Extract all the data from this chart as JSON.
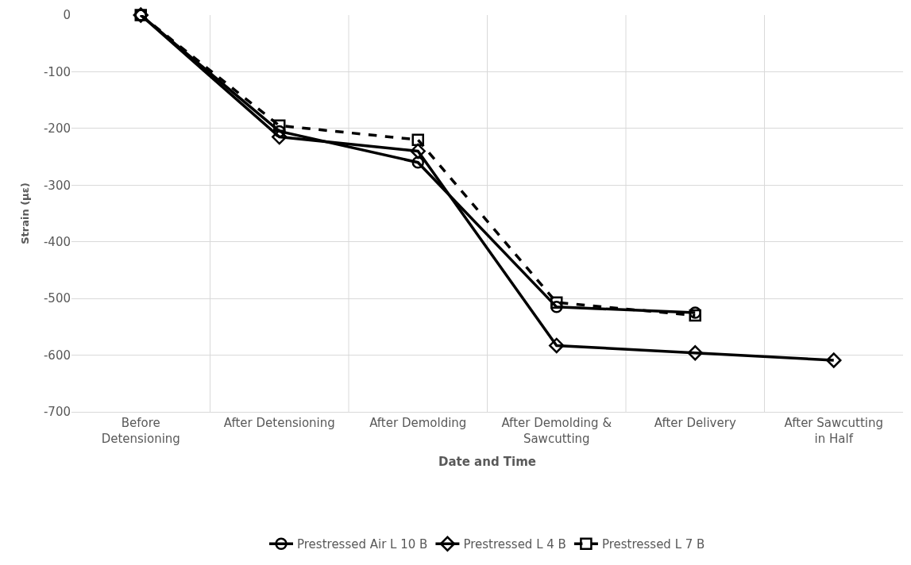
{
  "chart_data": {
    "type": "line",
    "xlabel": "Date and Time",
    "ylabel": "Strain (µε)",
    "categories": [
      "Before Detensioning",
      "After Detensioning",
      "After Demolding",
      "After Demolding & Sawcutting",
      "After Delivery",
      "After Sawcutting in Half"
    ],
    "series": [
      {
        "name": "Prestressed Air L 10 B",
        "color": "#000000",
        "marker": "circle",
        "line_style": "solid",
        "values": [
          0,
          -205,
          -260,
          -515,
          -525,
          null
        ]
      },
      {
        "name": "Prestressed L 4 B",
        "color": "#000000",
        "marker": "diamond",
        "line_style": "solid",
        "values": [
          0,
          -215,
          -240,
          -583,
          -596,
          -609
        ]
      },
      {
        "name": "Prestressed L 7 B",
        "color": "#000000",
        "marker": "square",
        "line_style": "dashed",
        "values": [
          0,
          -195,
          -220,
          -507,
          -530,
          null
        ]
      }
    ],
    "ylim": [
      -700,
      0
    ],
    "yticks": [
      -700,
      -600,
      -500,
      -400,
      -300,
      -200,
      -100,
      0
    ],
    "grid": true,
    "legend": "bottom"
  }
}
